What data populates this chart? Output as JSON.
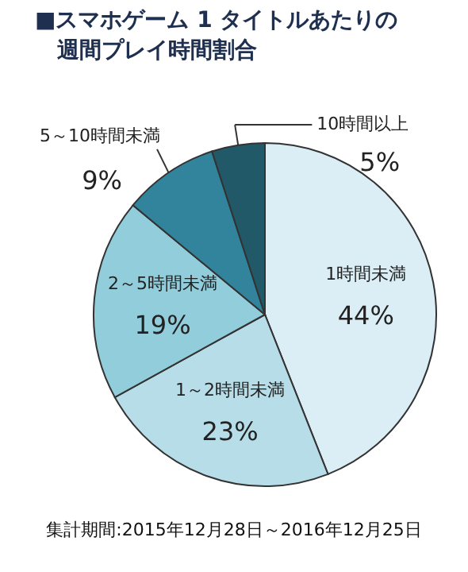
{
  "chart_data": {
    "type": "pie",
    "title": "■スマホゲーム 1 タイトルあたりの週間プレイ時間割合",
    "categories": [
      "1時間未満",
      "1～2時間未満",
      "2～5時間未満",
      "5～10時間未満",
      "10時間以上"
    ],
    "values": [
      44,
      23,
      19,
      9,
      5
    ],
    "colors": [
      "#dbeef6",
      "#b7dde8",
      "#92cddc",
      "#31849b",
      "#215968"
    ],
    "value_labels": [
      "44%",
      "23%",
      "19%",
      "9%",
      "5%"
    ],
    "annotations": [
      "集計期間:2015年12月28日～2016年12月25日"
    ]
  }
}
